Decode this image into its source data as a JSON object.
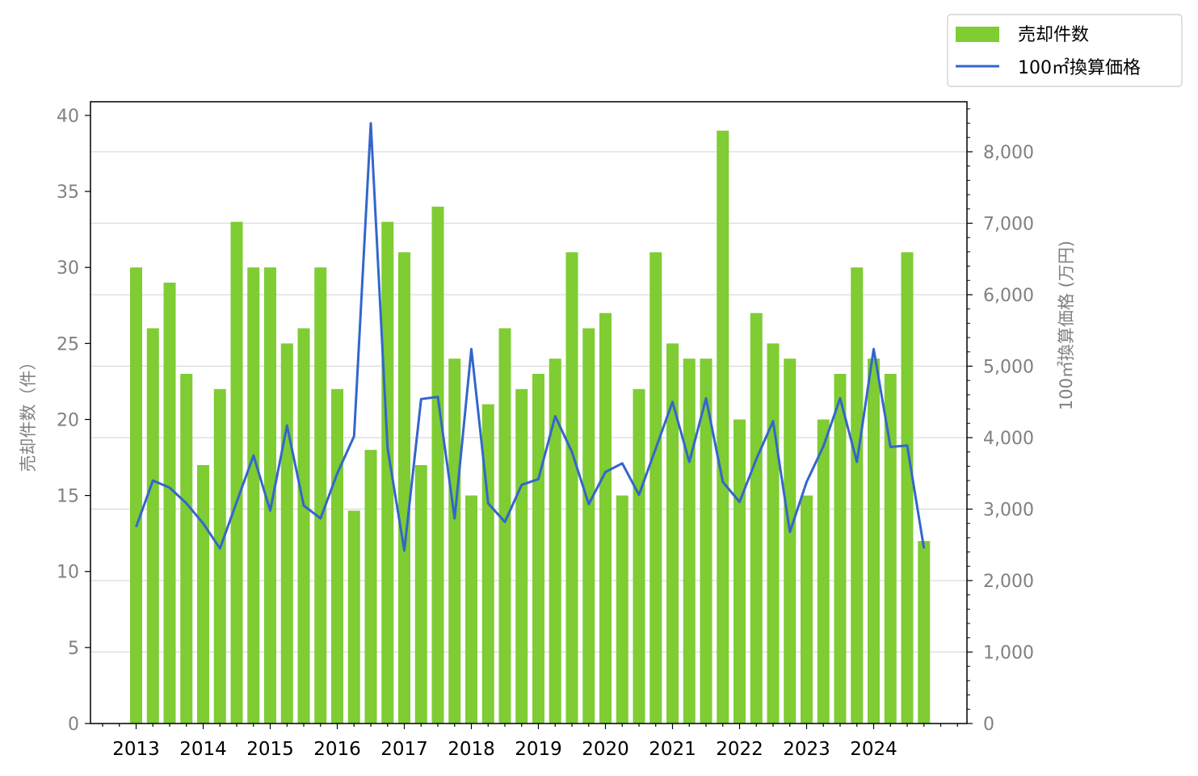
{
  "chart_data": {
    "type": "bar",
    "x_ticks": [
      "2013",
      "2014",
      "2015",
      "2016",
      "2017",
      "2018",
      "2019",
      "2020",
      "2021",
      "2022",
      "2023",
      "2024"
    ],
    "ylabel": "売却件数（件）",
    "ylabel_right": "100㎡換算価格 (万円)",
    "ylim": [
      0,
      40.9
    ],
    "ylim_right": [
      0,
      8700
    ],
    "yticks_left": [
      "0",
      "5",
      "10",
      "15",
      "20",
      "25",
      "30",
      "35",
      "40"
    ],
    "yticks_right": [
      "0",
      "1,000",
      "2,000",
      "3,000",
      "4,000",
      "5,000",
      "6,000",
      "7,000",
      "8,000"
    ],
    "legend": {
      "position": "top-right, outside plot",
      "bar_label": "売却件数",
      "line_label": "100㎡換算価格"
    },
    "grid": "horizontal (right axis)",
    "series": [
      {
        "name": "売却件数",
        "type": "bar",
        "color": "#7fcc33",
        "values": [
          30,
          26,
          29,
          23,
          17,
          22,
          33,
          30,
          30,
          25,
          26,
          30,
          22,
          14,
          18,
          33,
          31,
          17,
          34,
          24,
          15,
          21,
          26,
          22,
          23,
          24,
          31,
          26,
          27,
          15,
          22,
          31,
          25,
          24,
          24,
          39,
          20,
          27,
          25,
          24,
          15,
          20,
          23,
          30,
          24,
          23,
          31,
          12
        ]
      },
      {
        "name": "100㎡換算価格",
        "type": "line",
        "color": "#3366cc",
        "values": [
          2750,
          3400,
          3300,
          3080,
          2800,
          2450,
          3100,
          3750,
          2980,
          4170,
          3050,
          2870,
          3500,
          4020,
          8400,
          3850,
          2420,
          4540,
          4570,
          2870,
          5240,
          3080,
          2820,
          3340,
          3420,
          4300,
          3800,
          3070,
          3520,
          3640,
          3200,
          3850,
          4500,
          3660,
          4550,
          3380,
          3100,
          3700,
          4230,
          2680,
          3380,
          3880,
          4550,
          3660,
          5240,
          3870,
          3890,
          2450
        ]
      }
    ]
  }
}
